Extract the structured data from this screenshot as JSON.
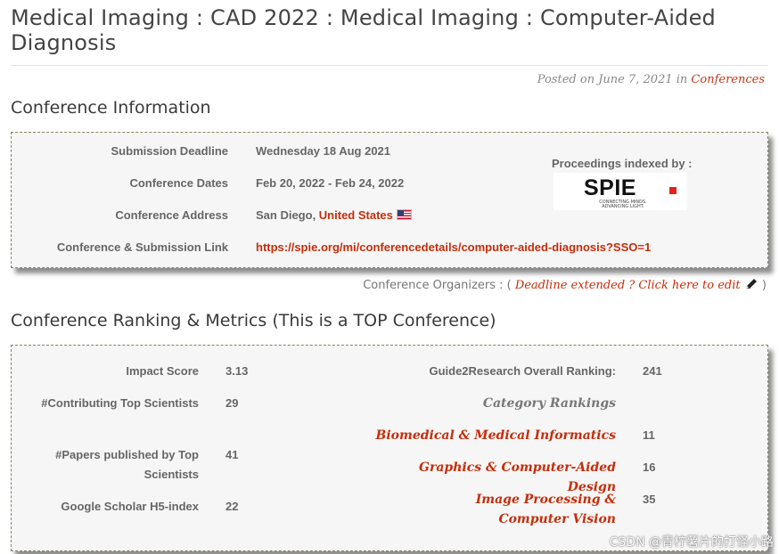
{
  "page": {
    "title": "Medical Imaging : CAD 2022 : Medical Imaging : Computer-Aided Diagnosis",
    "posted_prefix": "Posted on June 7, 2021 in ",
    "posted_category": "Conferences"
  },
  "conference_info": {
    "heading": "Conference Information",
    "rows": [
      {
        "label": "Submission Deadline",
        "value": "Wednesday 18 Aug 2021"
      },
      {
        "label": "Conference Dates",
        "value": "Feb 20, 2022 - Feb 24, 2022"
      },
      {
        "label": "Conference Address",
        "value": "San Diego, ",
        "link": "United States"
      },
      {
        "label": "Conference & Submission Link",
        "link": "https://spie.org/mi/conferencedetails/computer-aided-diagnosis?SSO=1"
      }
    ],
    "proceedings_label": "Proceedings indexed by :",
    "proceedings_logo": "SPIE",
    "proceedings_tagline": "CONNECTING MINDS. ADVANCING LIGHT."
  },
  "organizers": {
    "label": "Conference Organizers : ( ",
    "link": "Deadline extended ? Click here to edit",
    "close": " )"
  },
  "ranking": {
    "heading": "Conference Ranking & Metrics (This is a TOP Conference)",
    "metrics": [
      {
        "label": "Impact Score",
        "value": "3.13"
      },
      {
        "label": "#Contributing Top Scientists",
        "value": "29"
      },
      {
        "label": "#Papers published by Top Scientists",
        "value": "41"
      },
      {
        "label": "Google Scholar H5-index",
        "value": "22"
      }
    ],
    "overall_label": "Guide2Research Overall Ranking:",
    "overall_value": "241",
    "category_heading": "Category Rankings",
    "categories": [
      {
        "name": "Biomedical & Medical Informatics",
        "value": "11"
      },
      {
        "name": "Graphics & Computer-Aided Design",
        "value": "16"
      },
      {
        "name": "Image Processing & Computer Vision",
        "value": "35"
      }
    ]
  },
  "watermark": "CSDN @青柠薯片的打怪小路",
  "colors": {
    "accent": "#c62d0a",
    "box_bg": "#f6f6f6",
    "box_border": "#8b8266"
  }
}
